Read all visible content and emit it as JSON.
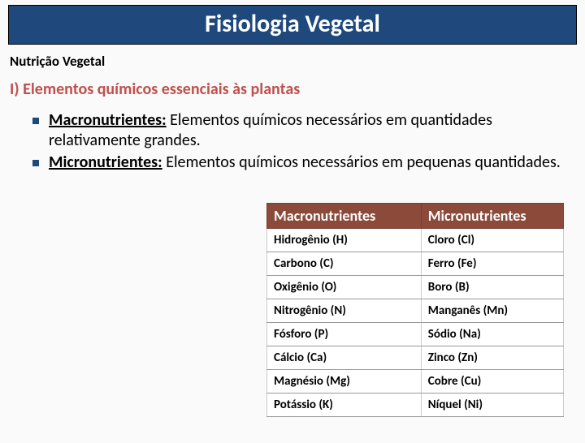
{
  "title": "Fisiologia Vegetal",
  "subtitle": "Nutrição Vegetal",
  "section_heading": "I)  Elementos químicos essenciais às plantas",
  "bullets": [
    {
      "term": "Macronutrientes:",
      "text": " Elementos químicos necessários em quantidades relativamente grandes."
    },
    {
      "term": "Micronutrientes:",
      "text": " Elementos químicos necessários em pequenas quantidades."
    }
  ],
  "table": {
    "headers": [
      "Macronutrientes",
      "Micronutrientes"
    ],
    "rows": [
      [
        "Hidrogênio (H)",
        "Cloro (Cl)"
      ],
      [
        "Carbono (C)",
        "Ferro (Fe)"
      ],
      [
        "Oxigênio (O)",
        "Boro (B)"
      ],
      [
        "Nitrogênio (N)",
        "Manganês (Mn)"
      ],
      [
        "Fósforo (P)",
        "Sódio (Na)"
      ],
      [
        "Cálcio (Ca)",
        "Zinco (Zn)"
      ],
      [
        "Magnésio (Mg)",
        "Cobre (Cu)"
      ],
      [
        "Potássio (K)",
        "Níquel (Ni)"
      ]
    ]
  },
  "colors": {
    "title_bg": "#1f497d",
    "accent": "#c0504d",
    "table_header_bg": "#8b4a3a"
  }
}
